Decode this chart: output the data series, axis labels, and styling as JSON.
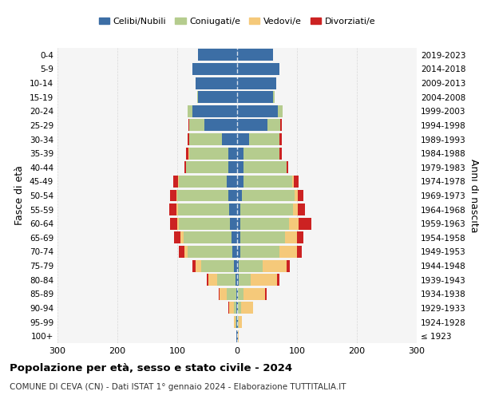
{
  "age_groups": [
    "100+",
    "95-99",
    "90-94",
    "85-89",
    "80-84",
    "75-79",
    "70-74",
    "65-69",
    "60-64",
    "55-59",
    "50-54",
    "45-49",
    "40-44",
    "35-39",
    "30-34",
    "25-29",
    "20-24",
    "15-19",
    "10-14",
    "5-9",
    "0-4"
  ],
  "birth_years": [
    "≤ 1923",
    "1924-1928",
    "1929-1933",
    "1934-1938",
    "1939-1943",
    "1944-1948",
    "1949-1953",
    "1954-1958",
    "1959-1963",
    "1964-1968",
    "1969-1973",
    "1974-1978",
    "1979-1983",
    "1984-1988",
    "1989-1993",
    "1994-1998",
    "1999-2003",
    "2004-2008",
    "2009-2013",
    "2014-2018",
    "2019-2023"
  ],
  "colors": {
    "celibi": "#3c6ea5",
    "coniugati": "#b5cc8e",
    "vedovi": "#f5c97a",
    "divorziati": "#cc2222"
  },
  "males": {
    "celibi": [
      1,
      1,
      1,
      2,
      3,
      5,
      8,
      10,
      12,
      14,
      15,
      17,
      15,
      15,
      25,
      55,
      75,
      65,
      70,
      75,
      65
    ],
    "coniugati": [
      0,
      2,
      5,
      15,
      30,
      55,
      75,
      80,
      85,
      85,
      85,
      80,
      70,
      65,
      55,
      25,
      8,
      2,
      0,
      0,
      0
    ],
    "vedovi": [
      0,
      2,
      8,
      12,
      15,
      10,
      5,
      5,
      3,
      3,
      2,
      2,
      1,
      1,
      0,
      0,
      0,
      0,
      0,
      0,
      0
    ],
    "divorziati": [
      0,
      0,
      1,
      2,
      3,
      5,
      10,
      10,
      12,
      12,
      10,
      8,
      2,
      5,
      3,
      2,
      0,
      0,
      0,
      0,
      0
    ]
  },
  "females": {
    "nubili": [
      1,
      1,
      1,
      1,
      2,
      3,
      5,
      5,
      5,
      5,
      8,
      10,
      10,
      10,
      20,
      50,
      68,
      60,
      65,
      70,
      60
    ],
    "coniugate": [
      0,
      2,
      5,
      10,
      20,
      40,
      65,
      75,
      82,
      88,
      88,
      82,
      72,
      60,
      50,
      22,
      8,
      2,
      0,
      0,
      0
    ],
    "vedove": [
      1,
      5,
      20,
      35,
      45,
      40,
      30,
      20,
      15,
      8,
      5,
      3,
      1,
      1,
      0,
      0,
      0,
      0,
      0,
      0,
      0
    ],
    "divorziate": [
      0,
      0,
      1,
      3,
      3,
      5,
      8,
      10,
      22,
      12,
      10,
      8,
      2,
      4,
      4,
      2,
      0,
      0,
      0,
      0,
      0
    ]
  },
  "title": "Popolazione per età, sesso e stato civile - 2024",
  "subtitle": "COMUNE DI CEVA (CN) - Dati ISTAT 1° gennaio 2024 - Elaborazione TUTTITALIA.IT",
  "xlim": 300,
  "ylabel_left": "Fasce di età",
  "ylabel_right": "Anni di nascita",
  "legend_labels": [
    "Celibi/Nubili",
    "Coniugati/e",
    "Vedovi/e",
    "Divorziati/e"
  ],
  "background_color": "#f5f5f5",
  "grid_color": "#cccccc"
}
